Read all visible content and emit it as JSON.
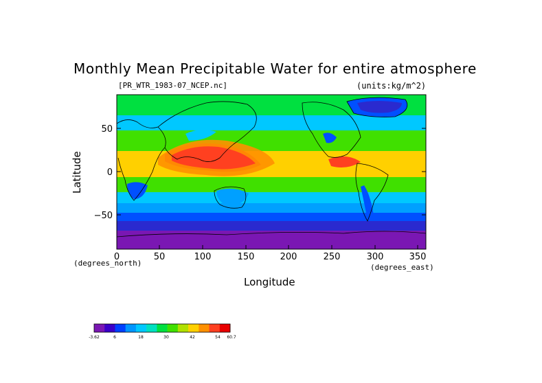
{
  "title": "Monthly Mean Precipitable Water for entire atmosphere",
  "file_label": "[PR_WTR_1983-07_NCEP.nc]",
  "units_label": "(units:kg/m^2)",
  "y_axis": {
    "label": "Latitude",
    "ticks": [
      "50",
      "0",
      "−50"
    ],
    "unit": "(degrees_north)"
  },
  "x_axis": {
    "label": "Longitude",
    "ticks": [
      "0",
      "50",
      "100",
      "150",
      "200",
      "250",
      "300",
      "350"
    ],
    "unit": "(degrees_east)"
  },
  "colorbar": {
    "tick_labels": [
      "-3.62",
      "6",
      "18",
      "30",
      "42",
      "54",
      "60.7"
    ],
    "colors": [
      "#7a17b3",
      "#3a00c8",
      "#0040ff",
      "#0096ff",
      "#00c8ff",
      "#00e0c0",
      "#00e040",
      "#40e000",
      "#b0e000",
      "#ffd000",
      "#ff9000",
      "#ff4020",
      "#e80000"
    ]
  },
  "colors": {
    "band_polar": "#7a17b3",
    "band_deep_blue": "#2a2acf",
    "band_blue": "#0050ff",
    "band_light_blue": "#00a0ff",
    "band_cyan": "#00d8ff",
    "band_green": "#00e040",
    "band_yellow": "#ffd000",
    "band_orange": "#ff9000",
    "band_red": "#ff4020"
  }
}
